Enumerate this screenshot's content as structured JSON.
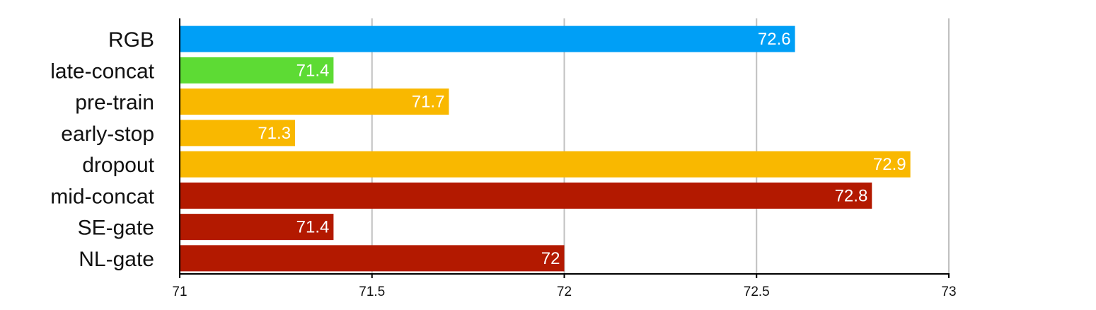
{
  "chart_data": {
    "type": "bar",
    "orientation": "horizontal",
    "categories": [
      "RGB",
      "late-concat",
      "pre-train",
      "early-stop",
      "dropout",
      "mid-concat",
      "SE-gate",
      "NL-gate"
    ],
    "values": [
      72.6,
      71.4,
      71.7,
      71.3,
      72.9,
      72.8,
      71.4,
      72
    ],
    "value_labels": [
      "72.6",
      "71.4",
      "71.7",
      "71.3",
      "72.9",
      "72.8",
      "71.4",
      "72"
    ],
    "colors": [
      "#009ff6",
      "#5ddb34",
      "#f9b800",
      "#f9b800",
      "#f9b800",
      "#b31900",
      "#b31900",
      "#b31900"
    ],
    "xlim": [
      71,
      73
    ],
    "xticks": [
      71,
      71.5,
      72,
      72.5,
      73
    ],
    "xtick_labels": [
      "71",
      "71.5",
      "72",
      "72.5",
      "73"
    ],
    "grid": "vertical",
    "title": "",
    "xlabel": "",
    "ylabel": ""
  }
}
